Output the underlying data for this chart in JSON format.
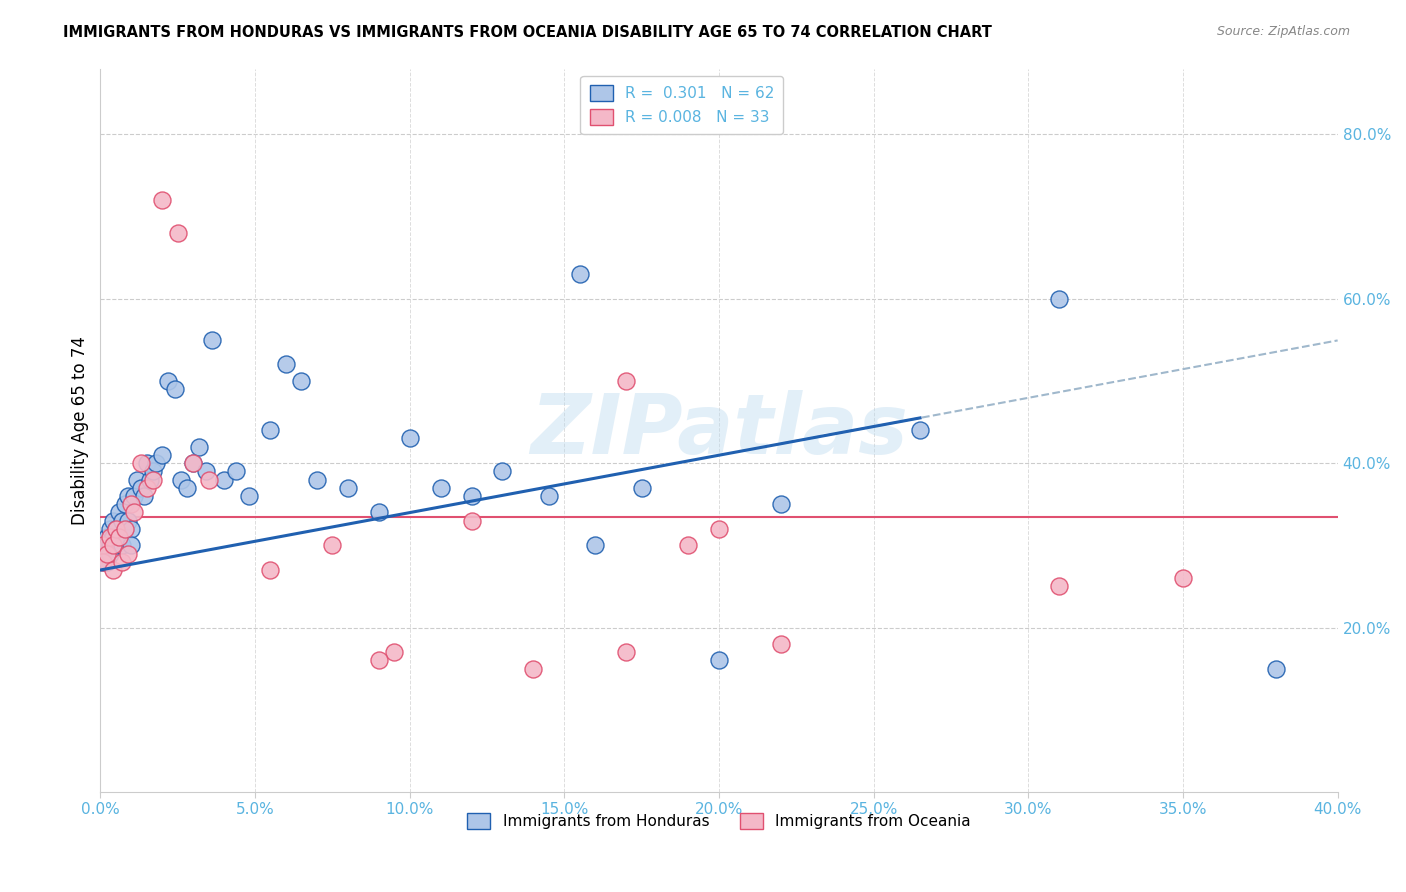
{
  "title": "IMMIGRANTS FROM HONDURAS VS IMMIGRANTS FROM OCEANIA DISABILITY AGE 65 TO 74 CORRELATION CHART",
  "source": "Source: ZipAtlas.com",
  "ylabel": "Disability Age 65 to 74",
  "xlim": [
    0.0,
    0.4
  ],
  "ylim": [
    0.0,
    0.88
  ],
  "xticks": [
    0.0,
    0.05,
    0.1,
    0.15,
    0.2,
    0.25,
    0.3,
    0.35,
    0.4
  ],
  "yticks": [
    0.2,
    0.4,
    0.6,
    0.8
  ],
  "R_honduras": 0.301,
  "N_honduras": 62,
  "R_oceania": 0.008,
  "N_oceania": 33,
  "honduras_color": "#aec6e8",
  "oceania_color": "#f4b8c8",
  "trend_honduras_color": "#2060b0",
  "trend_oceania_color": "#e05070",
  "trend_gray_color": "#a0b8cc",
  "axis_color": "#5ab4e0",
  "watermark": "ZIPatlas",
  "blue_line_x0": 0.0,
  "blue_line_y0": 0.27,
  "blue_line_x1": 0.265,
  "blue_line_y1": 0.455,
  "gray_line_x0": 0.22,
  "gray_line_y0": 0.425,
  "gray_line_x1": 0.4,
  "gray_line_y1": 0.545,
  "pink_line_y": 0.335,
  "honduras_x": [
    0.001,
    0.001,
    0.001,
    0.002,
    0.002,
    0.002,
    0.003,
    0.003,
    0.003,
    0.004,
    0.004,
    0.005,
    0.005,
    0.006,
    0.006,
    0.007,
    0.007,
    0.008,
    0.008,
    0.009,
    0.009,
    0.01,
    0.01,
    0.011,
    0.012,
    0.013,
    0.014,
    0.015,
    0.016,
    0.017,
    0.018,
    0.02,
    0.022,
    0.024,
    0.026,
    0.028,
    0.03,
    0.032,
    0.034,
    0.036,
    0.04,
    0.044,
    0.048,
    0.055,
    0.06,
    0.065,
    0.07,
    0.08,
    0.09,
    0.1,
    0.11,
    0.12,
    0.13,
    0.145,
    0.155,
    0.16,
    0.175,
    0.2,
    0.22,
    0.265,
    0.31,
    0.38
  ],
  "honduras_y": [
    0.3,
    0.29,
    0.28,
    0.31,
    0.3,
    0.28,
    0.32,
    0.3,
    0.29,
    0.33,
    0.31,
    0.32,
    0.3,
    0.34,
    0.31,
    0.33,
    0.3,
    0.35,
    0.32,
    0.36,
    0.33,
    0.32,
    0.3,
    0.36,
    0.38,
    0.37,
    0.36,
    0.4,
    0.38,
    0.39,
    0.4,
    0.41,
    0.5,
    0.49,
    0.38,
    0.37,
    0.4,
    0.42,
    0.39,
    0.55,
    0.38,
    0.39,
    0.36,
    0.44,
    0.52,
    0.5,
    0.38,
    0.37,
    0.34,
    0.43,
    0.37,
    0.36,
    0.39,
    0.36,
    0.63,
    0.3,
    0.37,
    0.16,
    0.35,
    0.44,
    0.6,
    0.15
  ],
  "oceania_x": [
    0.001,
    0.001,
    0.002,
    0.003,
    0.004,
    0.004,
    0.005,
    0.006,
    0.007,
    0.008,
    0.009,
    0.01,
    0.011,
    0.013,
    0.015,
    0.017,
    0.02,
    0.025,
    0.03,
    0.035,
    0.055,
    0.075,
    0.095,
    0.12,
    0.14,
    0.17,
    0.19,
    0.22,
    0.31,
    0.35,
    0.2,
    0.17,
    0.09
  ],
  "oceania_y": [
    0.3,
    0.28,
    0.29,
    0.31,
    0.3,
    0.27,
    0.32,
    0.31,
    0.28,
    0.32,
    0.29,
    0.35,
    0.34,
    0.4,
    0.37,
    0.38,
    0.72,
    0.68,
    0.4,
    0.38,
    0.27,
    0.3,
    0.17,
    0.33,
    0.15,
    0.17,
    0.3,
    0.18,
    0.25,
    0.26,
    0.32,
    0.5,
    0.16
  ]
}
